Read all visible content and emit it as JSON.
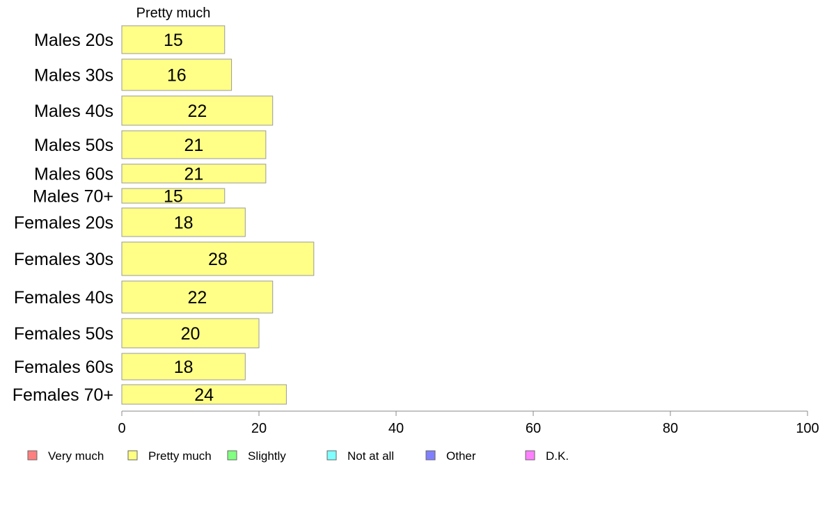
{
  "chart_data": {
    "type": "bar",
    "orientation": "horizontal",
    "stacked": true,
    "column_title": "Pretty much",
    "categories": [
      "Males 20s",
      "Males 30s",
      "Males 40s",
      "Males 50s",
      "Males 60s",
      "Males 70+",
      "Females 20s",
      "Females 30s",
      "Females 40s",
      "Females 50s",
      "Females 60s",
      "Females 70+"
    ],
    "series": [
      {
        "name": "Pretty much",
        "values": [
          15,
          16,
          22,
          21,
          21,
          15,
          18,
          28,
          22,
          20,
          18,
          24
        ]
      }
    ],
    "xlim": [
      0,
      100
    ],
    "xticks": [
      0,
      20,
      40,
      60,
      80,
      100
    ],
    "grid": false,
    "legend_position": "bottom",
    "legend": [
      {
        "label": "Very much",
        "color": "#ff8080"
      },
      {
        "label": "Pretty much",
        "color": "#ffff80"
      },
      {
        "label": "Slightly",
        "color": "#80ff80"
      },
      {
        "label": "Not at all",
        "color": "#80ffff"
      },
      {
        "label": "Other",
        "color": "#8080ff"
      },
      {
        "label": "D.K.",
        "color": "#ff80ff"
      }
    ],
    "bar_color": "#ffff88"
  }
}
